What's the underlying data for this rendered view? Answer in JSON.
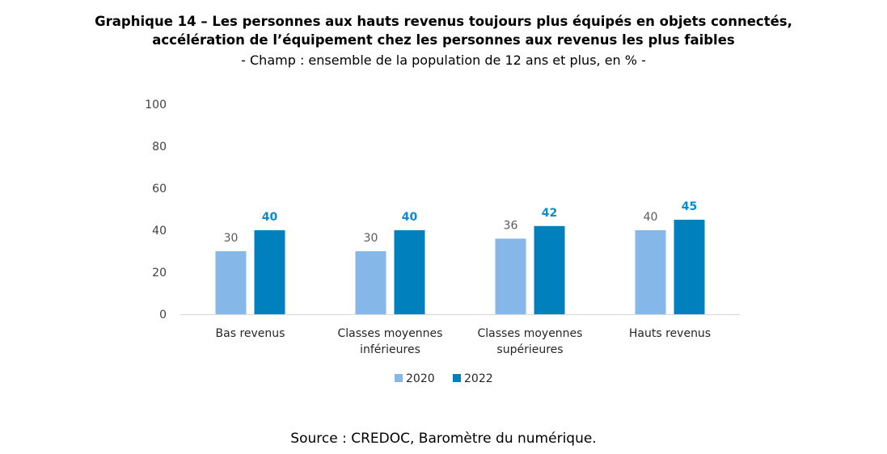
{
  "header": {
    "title_line1": "Graphique 14 – Les personnes aux hauts revenus toujours plus équipés en objets connectés,",
    "title_line2": "accélération de l’équipement chez les personnes aux revenus les plus faibles",
    "subtitle": "- Champ : ensemble de la population de 12 ans et plus, en % -"
  },
  "footer": {
    "source": "Source : CREDOC, Baromètre du numérique."
  },
  "chart_data": {
    "type": "bar",
    "title": "Graphique 14 – Les personnes aux hauts revenus toujours plus équipés en objets connectés, accélération de l’équipement chez les personnes aux revenus les plus faibles",
    "subtitle": "- Champ : ensemble de la population de 12 ans et plus, en % -",
    "xlabel": "",
    "ylabel": "",
    "ylim": [
      0,
      100
    ],
    "yticks": [
      0,
      20,
      40,
      60,
      80,
      100
    ],
    "grid": false,
    "legend_position": "bottom",
    "categories": [
      [
        "Bas revenus"
      ],
      [
        "Classes moyennes",
        "inférieures"
      ],
      [
        "Classes moyennes",
        "supérieures"
      ],
      [
        "Hauts revenus"
      ]
    ],
    "series": [
      {
        "name": "2020",
        "color": "#85b7e8",
        "values": [
          30,
          30,
          36,
          40
        ]
      },
      {
        "name": "2022",
        "color": "#0080bc",
        "values": [
          40,
          40,
          42,
          45
        ]
      }
    ],
    "label_colors": {
      "2020": "#595959",
      "2022": "#0a8bd0"
    }
  }
}
